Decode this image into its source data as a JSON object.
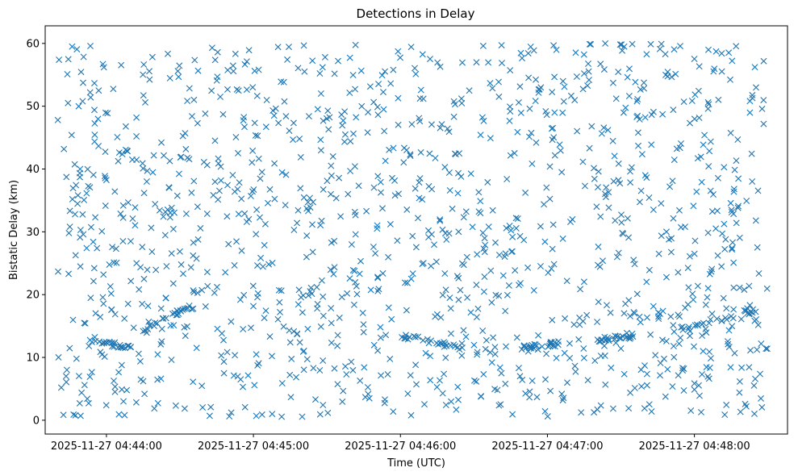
{
  "chart_data": {
    "type": "scatter",
    "title": "Detections in Delay",
    "xlabel": "Time (UTC)",
    "ylabel": "Bistatic Delay (km)",
    "marker": "x",
    "color": "#1f77b4",
    "grid": false,
    "legend": "none",
    "xlim": [
      "2025-11-27 04:43:35",
      "2025-11-27 04:48:38"
    ],
    "ylim": [
      -2.2,
      62.8
    ],
    "x_ticks": [
      "2025-11-27 04:44:00",
      "2025-11-27 04:45:00",
      "2025-11-27 04:46:00",
      "2025-11-27 04:47:00",
      "2025-11-27 04:48:00"
    ],
    "y_ticks": [
      0,
      10,
      20,
      30,
      40,
      50,
      60
    ],
    "time_range": [
      "2025-11-27 04:43:40",
      "2025-11-27 04:48:30"
    ],
    "point_count": 1450,
    "tracks": [
      {
        "from": "2025-11-27 04:43:53",
        "to": "2025-11-27 04:44:10",
        "delay_start": 12.8,
        "delay_end": 11.6
      },
      {
        "from": "2025-11-27 04:44:15",
        "to": "2025-11-27 04:44:35",
        "delay_start": 14.5,
        "delay_end": 18.2
      },
      {
        "from": "2025-11-27 04:46:00",
        "to": "2025-11-27 04:46:25",
        "delay_start": 13.5,
        "delay_end": 11.5
      },
      {
        "from": "2025-11-27 04:46:50",
        "to": "2025-11-27 04:47:05",
        "delay_start": 11.6,
        "delay_end": 12.2
      },
      {
        "from": "2025-11-27 04:47:20",
        "to": "2025-11-27 04:47:35",
        "delay_start": 12.8,
        "delay_end": 13.4
      },
      {
        "from": "2025-11-27 04:47:55",
        "to": "2025-11-27 04:48:25",
        "delay_start": 14.6,
        "delay_end": 17.5
      }
    ]
  }
}
